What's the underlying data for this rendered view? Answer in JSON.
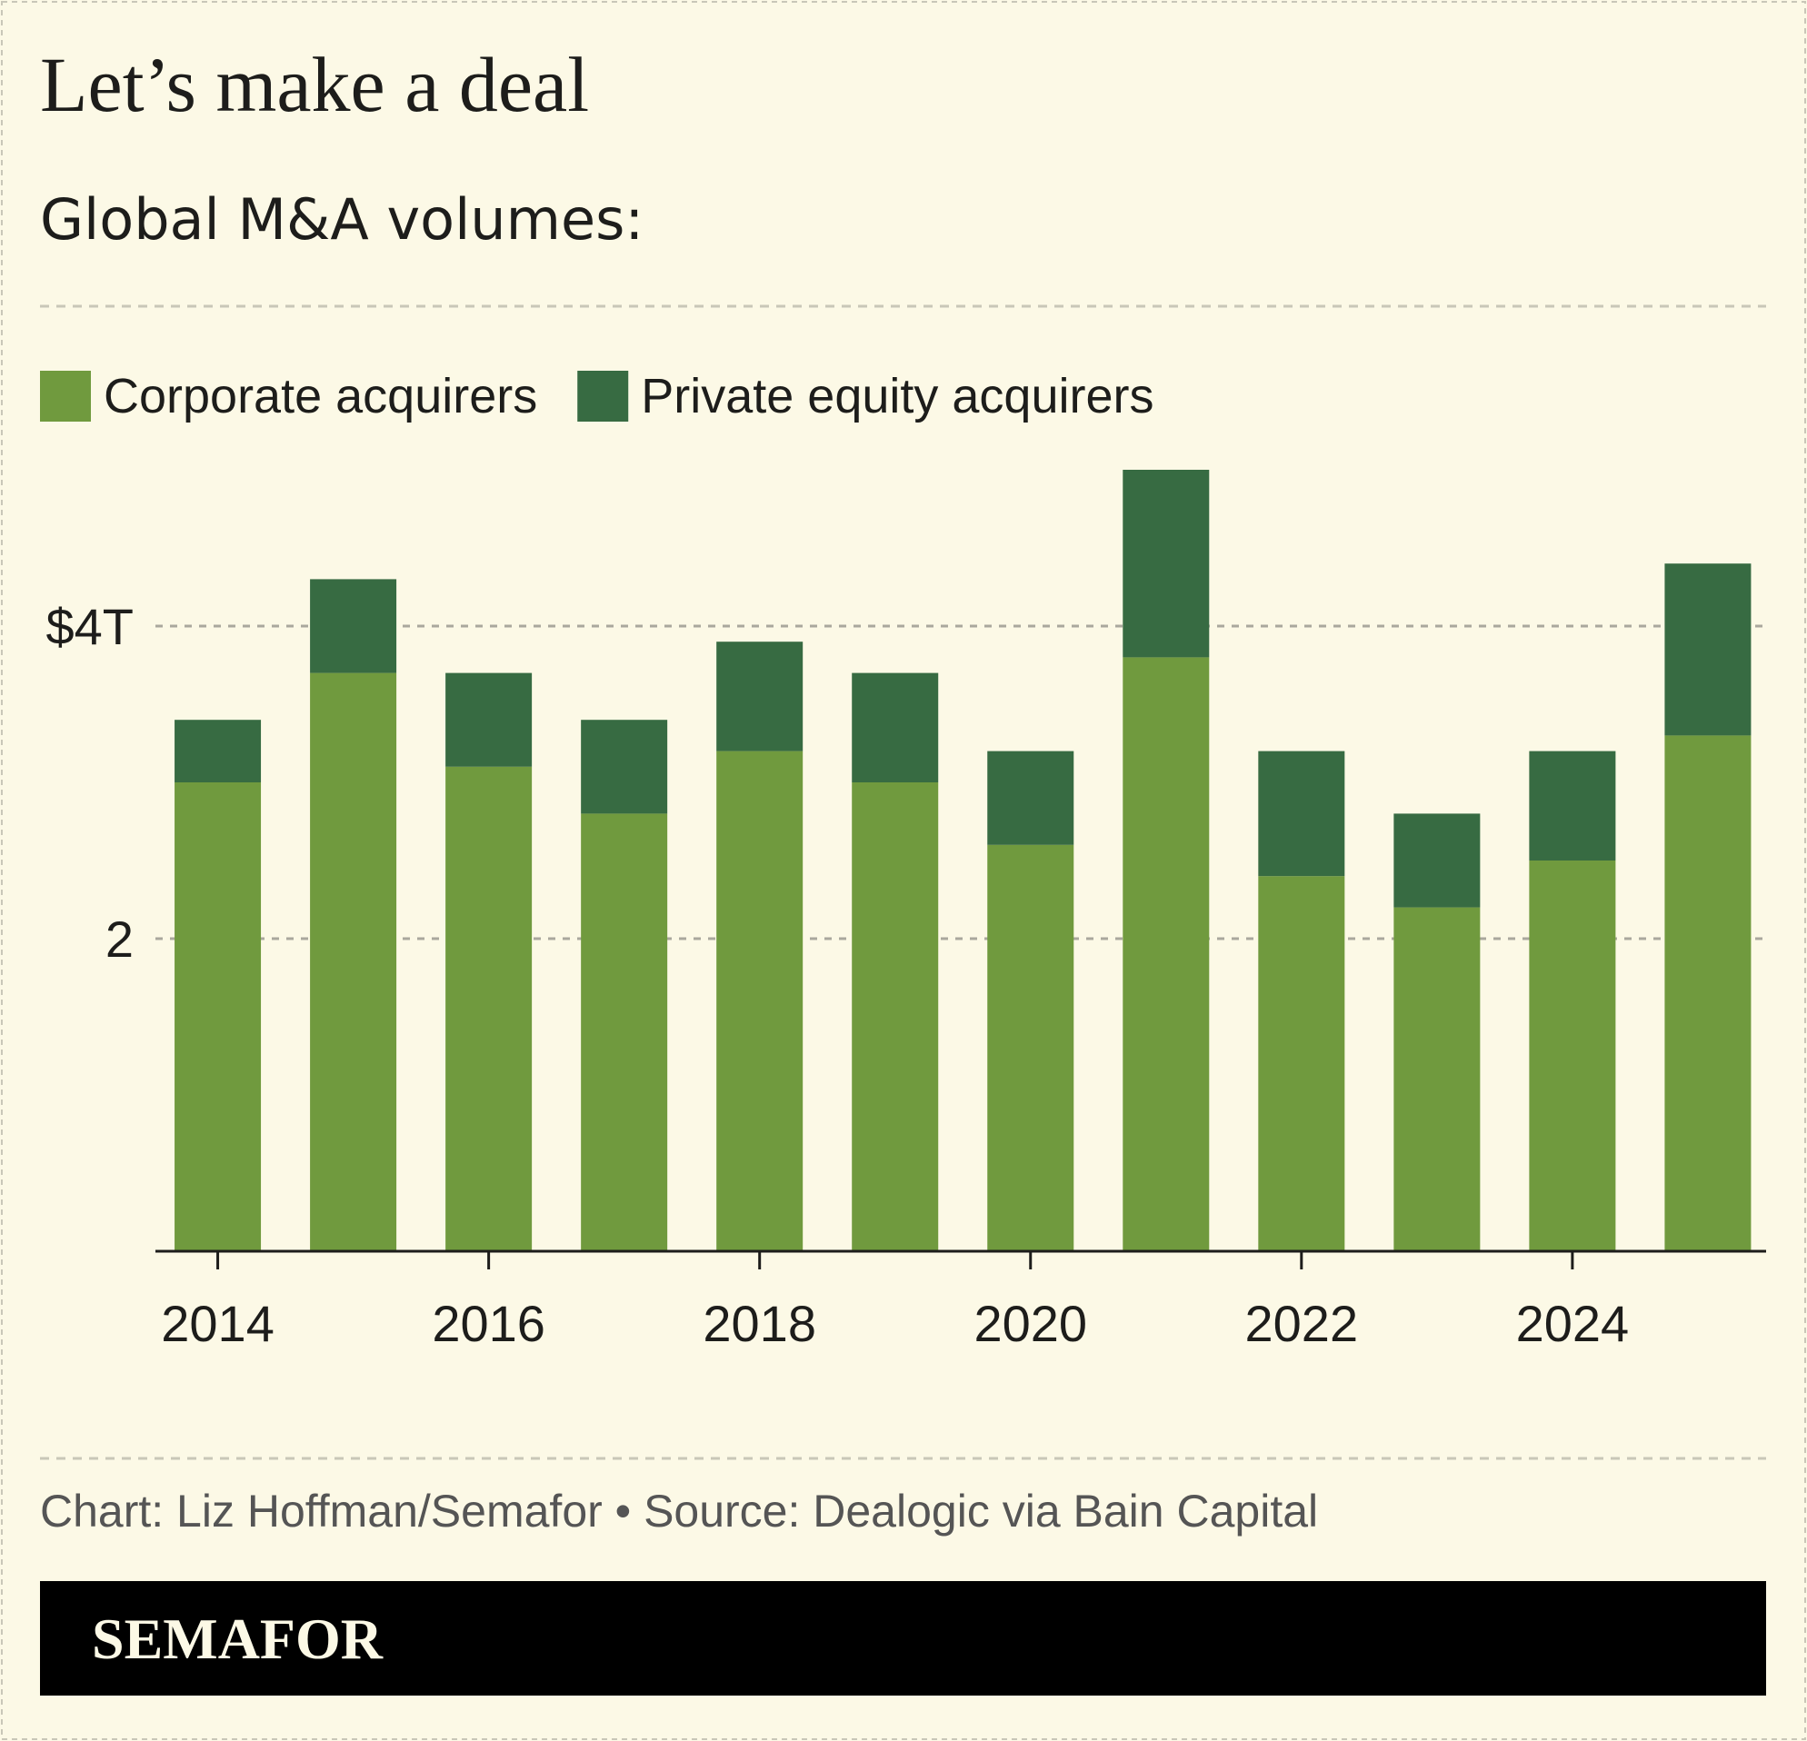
{
  "chart_data": {
    "type": "bar",
    "stacked": true,
    "title": "Let’s make a deal",
    "subtitle": "Global M&A volumes:",
    "x": [
      2014,
      2015,
      2016,
      2017,
      2018,
      2019,
      2020,
      2021,
      2022,
      2023,
      2024,
      2025
    ],
    "series": [
      {
        "name": "Corporate acquirers",
        "color": "#709a3e",
        "values": [
          3.0,
          3.7,
          3.1,
          2.8,
          3.2,
          3.0,
          2.6,
          3.8,
          2.4,
          2.2,
          2.5,
          3.3
        ]
      },
      {
        "name": "Private equity acquirers",
        "color": "#376b42",
        "values": [
          0.4,
          0.6,
          0.6,
          0.6,
          0.7,
          0.7,
          0.6,
          1.2,
          0.8,
          0.6,
          0.7,
          1.1
        ]
      }
    ],
    "xlim": [
      2013.54,
      2025.43
    ],
    "xticks": [
      2014,
      2016,
      2018,
      2020,
      2022,
      2024
    ],
    "ylim": [
      0,
      5
    ],
    "yticks": [
      2,
      {
        "value": 4,
        "label": "$4T"
      }
    ],
    "grid": true,
    "source": "Chart: Liz Hoffman/Semafor • Source: Dealogic via Bain Capital",
    "brand": "SEMAFOR"
  }
}
